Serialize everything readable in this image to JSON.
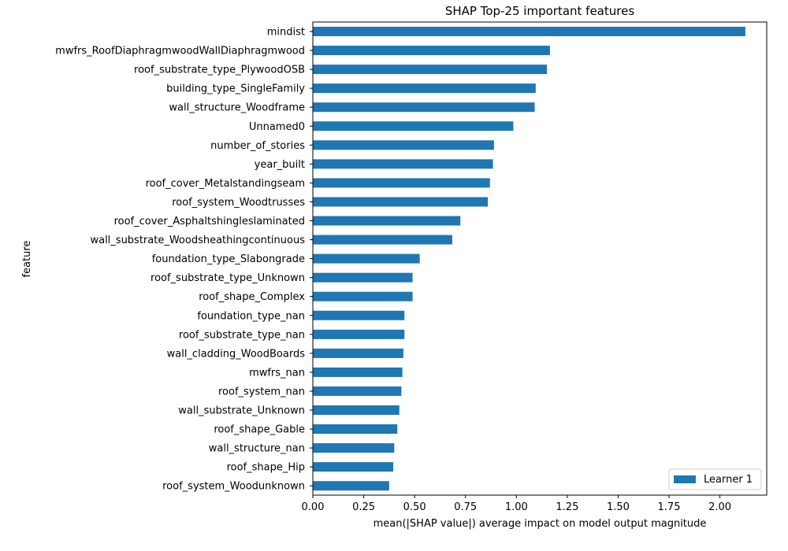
{
  "chart_data": {
    "type": "bar",
    "orientation": "horizontal",
    "title": "SHAP Top-25 important features",
    "xlabel": "mean(|SHAP value|) average impact on model output magnitude",
    "ylabel": "feature",
    "xlim": [
      0,
      2.23
    ],
    "xticks": [
      "0.00",
      "0.25",
      "0.50",
      "0.75",
      "1.00",
      "1.25",
      "1.50",
      "1.75",
      "2.00"
    ],
    "xtick_values": [
      0,
      0.25,
      0.5,
      0.75,
      1.0,
      1.25,
      1.5,
      1.75,
      2.0
    ],
    "grid": false,
    "legend_position": "lower right",
    "series": [
      {
        "name": "Learner 1",
        "color": "#1f77b4",
        "values": [
          2.125,
          1.165,
          1.15,
          1.095,
          1.09,
          0.985,
          0.89,
          0.885,
          0.87,
          0.86,
          0.725,
          0.685,
          0.525,
          0.49,
          0.49,
          0.45,
          0.45,
          0.445,
          0.44,
          0.435,
          0.425,
          0.415,
          0.4,
          0.395,
          0.375
        ]
      }
    ],
    "categories": [
      "mindist",
      "mwfrs_RoofDiaphragmwoodWallDiaphragmwood",
      "roof_substrate_type_PlywoodOSB",
      "building_type_SingleFamily",
      "wall_structure_Woodframe",
      "Unnamed0",
      "number_of_stories",
      "year_built",
      "roof_cover_Metalstandingseam",
      "roof_system_Woodtrusses",
      "roof_cover_Asphaltshingleslaminated",
      "wall_substrate_Woodsheathingcontinuous",
      "foundation_type_Slabongrade",
      "roof_substrate_type_Unknown",
      "roof_shape_Complex",
      "foundation_type_nan",
      "roof_substrate_type_nan",
      "wall_cladding_WoodBoards",
      "mwfrs_nan",
      "roof_system_nan",
      "wall_substrate_Unknown",
      "roof_shape_Gable",
      "wall_structure_nan",
      "roof_shape_Hip",
      "roof_system_Woodunknown"
    ]
  }
}
